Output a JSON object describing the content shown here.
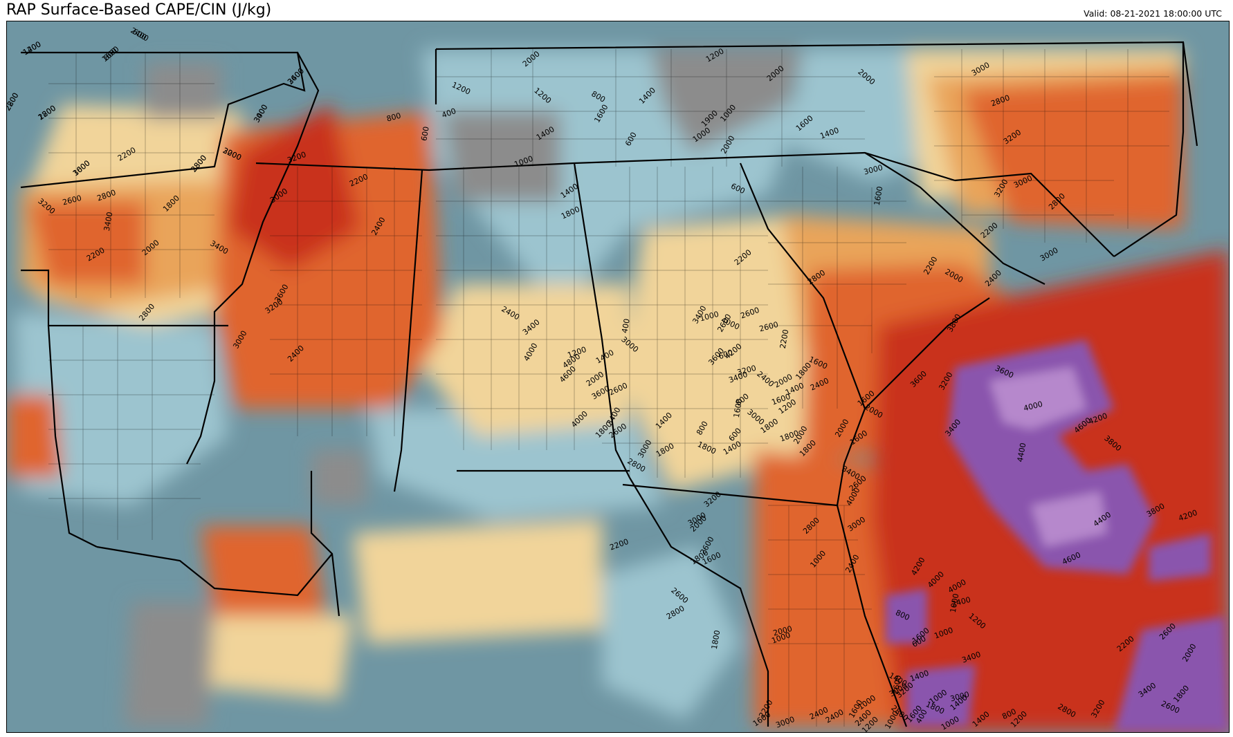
{
  "header": {
    "title": "RAP Surface-Based CAPE/CIN (J/kg)",
    "valid": "Valid: 08-21-2021 18:00:00 UTC"
  },
  "colors": {
    "cape_200_1000": "#8c8c8c",
    "cape_1000_1800": "#6e9aa6",
    "cape_1800_2000": "#9cc4cf",
    "cape_2000_2600": "#f1d49a",
    "cape_2600_3000": "#e9a45a",
    "cape_3000_3400": "#e0652f",
    "cape_3400_4000": "#c9331f",
    "cape_4000_4400": "#8a55ad",
    "cape_4400_4800": "#b688cc",
    "boundaries": "#000000"
  },
  "contour_labels": [
    {
      "text": "1200"
    },
    {
      "text": "800"
    },
    {
      "text": "600"
    },
    {
      "text": "2200"
    },
    {
      "text": "2800"
    },
    {
      "text": "3600"
    },
    {
      "text": "3400"
    },
    {
      "text": "3800"
    },
    {
      "text": "3200"
    },
    {
      "text": "3000"
    },
    {
      "text": "2800"
    },
    {
      "text": "2600"
    },
    {
      "text": "3400"
    },
    {
      "text": "3200"
    },
    {
      "text": "2200"
    },
    {
      "text": "3200"
    },
    {
      "text": "3000"
    },
    {
      "text": "2200"
    },
    {
      "text": "2400"
    },
    {
      "text": "1800"
    },
    {
      "text": "2200"
    },
    {
      "text": "2000"
    },
    {
      "text": "3400"
    },
    {
      "text": "3600"
    },
    {
      "text": "3200"
    },
    {
      "text": "2400"
    },
    {
      "text": "3000"
    },
    {
      "text": "2800"
    },
    {
      "text": "1200"
    },
    {
      "text": "2000"
    },
    {
      "text": "400"
    },
    {
      "text": "800"
    },
    {
      "text": "600"
    },
    {
      "text": "1200"
    },
    {
      "text": "1400"
    },
    {
      "text": "1000"
    },
    {
      "text": "1400"
    },
    {
      "text": "1800"
    },
    {
      "text": "1600"
    },
    {
      "text": "1400"
    },
    {
      "text": "1200"
    },
    {
      "text": "2000"
    },
    {
      "text": "800"
    },
    {
      "text": "600"
    },
    {
      "text": "1000"
    },
    {
      "text": "1900"
    },
    {
      "text": "2000"
    },
    {
      "text": "1000"
    },
    {
      "text": "600"
    },
    {
      "text": "1600"
    },
    {
      "text": "1400"
    },
    {
      "text": "3000"
    },
    {
      "text": "1600"
    },
    {
      "text": "2000"
    },
    {
      "text": "3000"
    },
    {
      "text": "2800"
    },
    {
      "text": "3200"
    },
    {
      "text": "3000"
    },
    {
      "text": "3200"
    },
    {
      "text": "2800"
    },
    {
      "text": "3000"
    },
    {
      "text": "2200"
    },
    {
      "text": "2000"
    },
    {
      "text": "2200"
    },
    {
      "text": "2800"
    },
    {
      "text": "2400"
    },
    {
      "text": "3800"
    },
    {
      "text": "1800"
    },
    {
      "text": "1600"
    },
    {
      "text": "2200"
    },
    {
      "text": "2600"
    },
    {
      "text": "2600"
    },
    {
      "text": "2200"
    },
    {
      "text": "2400"
    },
    {
      "text": "2000"
    },
    {
      "text": "1800"
    },
    {
      "text": "1600"
    },
    {
      "text": "2400"
    },
    {
      "text": "2600"
    },
    {
      "text": "1400"
    },
    {
      "text": "1800"
    },
    {
      "text": "1600"
    },
    {
      "text": "2000"
    },
    {
      "text": "2000"
    },
    {
      "text": "1800"
    },
    {
      "text": "3600"
    },
    {
      "text": "3200"
    },
    {
      "text": "3400"
    },
    {
      "text": "3600"
    },
    {
      "text": "4600"
    },
    {
      "text": "4200"
    },
    {
      "text": "4000"
    },
    {
      "text": "4400"
    },
    {
      "text": "3800"
    },
    {
      "text": "3800"
    },
    {
      "text": "4200"
    },
    {
      "text": "4400"
    },
    {
      "text": "4600"
    },
    {
      "text": "4200"
    },
    {
      "text": "4000"
    },
    {
      "text": "4000"
    },
    {
      "text": "2600"
    },
    {
      "text": "3400"
    },
    {
      "text": "4000"
    },
    {
      "text": "3000"
    },
    {
      "text": "2800"
    },
    {
      "text": "2400"
    },
    {
      "text": "1000"
    },
    {
      "text": "800"
    },
    {
      "text": "1600"
    },
    {
      "text": "1000"
    },
    {
      "text": "2400"
    },
    {
      "text": "1000"
    },
    {
      "text": "1200"
    },
    {
      "text": "600"
    },
    {
      "text": "1400"
    },
    {
      "text": "1000"
    },
    {
      "text": "800"
    },
    {
      "text": "400"
    },
    {
      "text": "1200"
    },
    {
      "text": "1000"
    },
    {
      "text": "1400"
    },
    {
      "text": "2800"
    },
    {
      "text": "3200"
    },
    {
      "text": "3400"
    },
    {
      "text": "2600"
    },
    {
      "text": "2000"
    },
    {
      "text": "1800"
    },
    {
      "text": "2600"
    },
    {
      "text": "2200"
    },
    {
      "text": "3400"
    },
    {
      "text": "3000"
    },
    {
      "text": "2600"
    },
    {
      "text": "2800"
    },
    {
      "text": "2400"
    },
    {
      "text": "3000"
    },
    {
      "text": "1600"
    },
    {
      "text": "2400"
    },
    {
      "text": "2200"
    },
    {
      "text": "2400"
    },
    {
      "text": "3000"
    },
    {
      "text": "3200"
    },
    {
      "text": "1400"
    },
    {
      "text": "1600"
    },
    {
      "text": "1000"
    },
    {
      "text": "1200"
    },
    {
      "text": "1000"
    },
    {
      "text": "1600"
    },
    {
      "text": "1800"
    },
    {
      "text": "1400"
    },
    {
      "text": "1000"
    },
    {
      "text": "2000"
    },
    {
      "text": "1800"
    },
    {
      "text": "2600"
    },
    {
      "text": "2800"
    },
    {
      "text": "2200"
    },
    {
      "text": "1800"
    },
    {
      "text": "1600"
    },
    {
      "text": "2600"
    },
    {
      "text": "2000"
    },
    {
      "text": "3000"
    },
    {
      "text": "3200"
    },
    {
      "text": "2800"
    },
    {
      "text": "3000"
    },
    {
      "text": "2600"
    },
    {
      "text": "1800"
    },
    {
      "text": "800"
    },
    {
      "text": "600"
    },
    {
      "text": "1800"
    },
    {
      "text": "800"
    },
    {
      "text": "600"
    },
    {
      "text": "1000"
    },
    {
      "text": "400"
    },
    {
      "text": "3000"
    },
    {
      "text": "1400"
    },
    {
      "text": "1200"
    },
    {
      "text": "2000"
    },
    {
      "text": "2600"
    },
    {
      "text": "3400"
    },
    {
      "text": "4000"
    },
    {
      "text": "3600"
    },
    {
      "text": "3400"
    },
    {
      "text": "2400"
    },
    {
      "text": "4000"
    },
    {
      "text": "4800"
    },
    {
      "text": "4600"
    },
    {
      "text": "3400"
    },
    {
      "text": "3600"
    },
    {
      "text": "4000"
    },
    {
      "text": "4200"
    },
    {
      "text": "3400"
    },
    {
      "text": "3200"
    },
    {
      "text": "1600"
    },
    {
      "text": "3000"
    },
    {
      "text": "1400"
    },
    {
      "text": "1600"
    },
    {
      "text": "1200"
    },
    {
      "text": "1400"
    },
    {
      "text": "2000"
    },
    {
      "text": "1800"
    },
    {
      "text": "1400"
    },
    {
      "text": "1600"
    },
    {
      "text": "2400"
    },
    {
      "text": "2800"
    },
    {
      "text": "1200"
    },
    {
      "text": "2400"
    },
    {
      "text": "3000"
    },
    {
      "text": "2800"
    },
    {
      "text": "2000"
    },
    {
      "text": "1600"
    }
  ]
}
